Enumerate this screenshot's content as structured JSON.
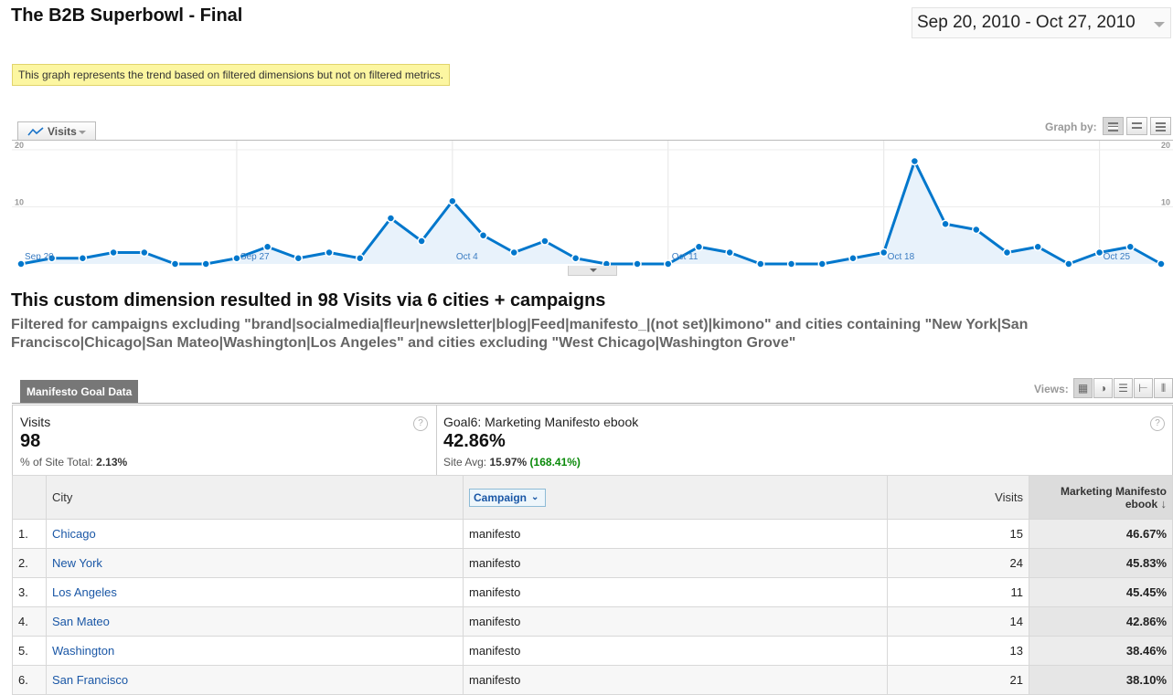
{
  "header": {
    "title": "The B2B Superbowl - Final",
    "date_range": "Sep 20, 2010 - Oct 27, 2010"
  },
  "notice": "This graph represents the trend based on filtered dimensions but not on filtered metrics.",
  "graph_controls": {
    "metric_label": "Visits",
    "graph_by_label": "Graph by:",
    "graph_by_options": [
      "day",
      "week",
      "month"
    ],
    "graph_by_selected": "day"
  },
  "chart_data": {
    "type": "area",
    "series": [
      {
        "name": "Visits",
        "values": [
          0,
          1,
          1,
          2,
          2,
          0,
          0,
          1,
          3,
          1,
          2,
          1,
          8,
          4,
          11,
          5,
          2,
          4,
          1,
          0,
          0,
          0,
          3,
          2,
          0,
          0,
          0,
          1,
          2,
          18,
          7,
          6,
          2,
          3,
          0,
          2,
          3,
          0
        ]
      }
    ],
    "x_tick_labels": [
      "Sep 20",
      "Sep 27",
      "Oct 4",
      "Oct 11",
      "Oct 18",
      "Oct 25"
    ],
    "y_tick_labels": [
      "10",
      "20"
    ],
    "ylim": [
      0,
      20
    ],
    "grid": true,
    "color": "#0077cc",
    "fill": "#e8f2fb"
  },
  "summary": {
    "heading": "This custom dimension resulted in 98 Visits via 6 cities + campaigns",
    "filter_text": "Filtered for campaigns excluding \"brand|socialmedia|fleur|newsletter|blog|Feed|manifesto_|(not set)|kimono\" and cities containing \"New York|San Francisco|Chicago|San Mateo|Washington|Los Angeles\" and cities excluding \"West Chicago|Washington Grove\""
  },
  "tab": {
    "label": "Manifesto Goal Data"
  },
  "views": {
    "label": "Views:"
  },
  "scorecards": {
    "visits": {
      "title": "Visits",
      "value": "98",
      "sub_label": "% of Site Total:",
      "sub_value": "2.13%"
    },
    "goal": {
      "title": "Goal6: Marketing Manifesto ebook",
      "value": "42.86%",
      "sub_label": "Site Avg:",
      "sub_value": "15.97%",
      "sub_change": "(168.41%)"
    }
  },
  "table": {
    "columns": {
      "city": "City",
      "campaign": "Campaign",
      "visits": "Visits",
      "goal": "Marketing Manifesto ebook"
    },
    "rows": [
      {
        "index": "1.",
        "city": "Chicago",
        "campaign": "manifesto",
        "visits": "15",
        "goal": "46.67%"
      },
      {
        "index": "2.",
        "city": "New York",
        "campaign": "manifesto",
        "visits": "24",
        "goal": "45.83%"
      },
      {
        "index": "3.",
        "city": "Los Angeles",
        "campaign": "manifesto",
        "visits": "11",
        "goal": "45.45%"
      },
      {
        "index": "4.",
        "city": "San Mateo",
        "campaign": "manifesto",
        "visits": "14",
        "goal": "42.86%"
      },
      {
        "index": "5.",
        "city": "Washington",
        "campaign": "manifesto",
        "visits": "13",
        "goal": "38.46%"
      },
      {
        "index": "6.",
        "city": "San Francisco",
        "campaign": "manifesto",
        "visits": "21",
        "goal": "38.10%"
      }
    ]
  }
}
